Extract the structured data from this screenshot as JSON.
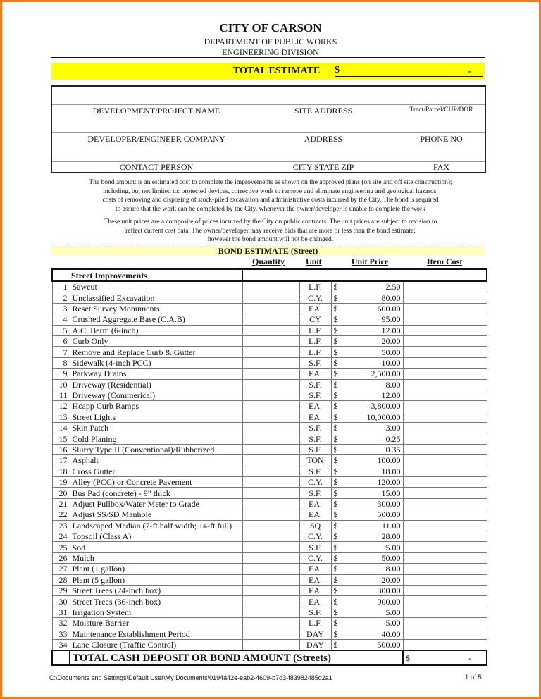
{
  "header": {
    "title": "CITY OF CARSON",
    "department": "DEPARTMENT OF PUBLIC WORKS",
    "division": "ENGINEERING DIVISION"
  },
  "total_estimate": {
    "label": "TOTAL ESTIMATE",
    "currency": "$",
    "value": "-",
    "highlight_color": "#ffff00"
  },
  "info_fields": {
    "project_name": "DEVELOPMENT/PROJECT NAME",
    "site_address": "SITE ADDRESS",
    "tract": "Tract/Parcel/CUP/DOR",
    "developer": "DEVELOPER/ENGINEER COMPANY",
    "address": "ADDRESS",
    "phone": "PHONE NO",
    "contact": "CONTACT PERSON",
    "city_state_zip": "CITY STATE ZIP",
    "fax": "FAX"
  },
  "disclaimer": {
    "p1": [
      "The bond amount is an estimated cost to complete the improvements as shown on the approved plans (on site and off site construction);",
      "including, but not limited to: protected devices, corrective work to remove and eliminate engineering and geological hazards,",
      "costs of removing and disposing of stock-piled excavation and administrative costs incurred by the City.  The bond is required",
      "to assure that the work can be completed by the City, whenever the owner/developer is unable to complete the work"
    ],
    "p2": [
      "These unit prices are a composite of prices incurred by the City on public contracts.  The unit prices are subject to revision to",
      "reflect current cost data. The owner/developer may receive bids that are more or less than the bond estimate;",
      "however the bond amount will not be changed."
    ]
  },
  "bond_estimate": {
    "title": "BOND ESTIMATE (Street)",
    "columns": {
      "quantity": "Quantity",
      "unit": "Unit",
      "unit_price": "Unit Price",
      "item_cost": "Item Cost"
    },
    "section": "Street Improvements",
    "currency": "$",
    "rows": [
      {
        "no": "1",
        "item": "Sawcut",
        "unit": "L.F.",
        "price": "2.50"
      },
      {
        "no": "2",
        "item": "Unclassified Excavation",
        "unit": "C.Y.",
        "price": "80.00"
      },
      {
        "no": "3",
        "item": "Reset Survey Monuments",
        "unit": "EA.",
        "price": "600.00"
      },
      {
        "no": "4",
        "item": "Crushed Aggregate Base (C.A.B)",
        "unit": "CY",
        "price": "95.00"
      },
      {
        "no": "5",
        "item": "A.C. Berm (6-inch)",
        "unit": "L.F.",
        "price": "12.00"
      },
      {
        "no": "6",
        "item": "Curb Only",
        "unit": "L.F.",
        "price": "20.00"
      },
      {
        "no": "7",
        "item": "Remove and Replace Curb & Gutter",
        "unit": "L.F.",
        "price": "50.00"
      },
      {
        "no": "8",
        "item": "Sidewalk (4-inch PCC)",
        "unit": "S.F.",
        "price": "10.00"
      },
      {
        "no": "9",
        "item": "Parkway Drains",
        "unit": "EA.",
        "price": "2,500.00"
      },
      {
        "no": "10",
        "item": "Driveway (Residential)",
        "unit": "S.F.",
        "price": "8.00"
      },
      {
        "no": "11",
        "item": "Driveway (Commerical)",
        "unit": "S.F.",
        "price": "12.00"
      },
      {
        "no": "12",
        "item": "Hcapp Curb Ramps",
        "unit": "EA.",
        "price": "3,800.00"
      },
      {
        "no": "13",
        "item": "Street Lights",
        "unit": "EA.",
        "price": "10,000.00"
      },
      {
        "no": "14",
        "item": "Skin Patch",
        "unit": "S.F.",
        "price": "3.00"
      },
      {
        "no": "15",
        "item": "Cold Planing",
        "unit": "S.F.",
        "price": "0.25"
      },
      {
        "no": "16",
        "item": "Slurry Type II (Conventional)/Rubberized",
        "unit": "S.F.",
        "price": "0.35"
      },
      {
        "no": "17",
        "item": "Asphalt",
        "unit": "TON",
        "price": "100.00"
      },
      {
        "no": "18",
        "item": "Cross Gutter",
        "unit": "S.F.",
        "price": "18.00"
      },
      {
        "no": "19",
        "item": "Alley (PCC) or Concrete Pavement",
        "unit": "C.Y.",
        "price": "120.00"
      },
      {
        "no": "20",
        "item": "Bus Pad (concrete) - 9\" thick",
        "unit": "S.F.",
        "price": "15.00"
      },
      {
        "no": "21",
        "item": "Adjust Pullbox/Water Meter to Grade",
        "unit": "EA.",
        "price": "300.00"
      },
      {
        "no": "22",
        "item": "Adjust SS/SD Manhole",
        "unit": "EA.",
        "price": "500.00"
      },
      {
        "no": "23",
        "item": "Landscaped Median (7-ft half width; 14-ft full)",
        "unit": "SQ",
        "price": "11.00"
      },
      {
        "no": "24",
        "item": "Topsoil (Class A)",
        "unit": "C.Y.",
        "price": "28.00"
      },
      {
        "no": "25",
        "item": "Sod",
        "unit": "S.F.",
        "price": "5.00"
      },
      {
        "no": "26",
        "item": "Mulch",
        "unit": "C.Y.",
        "price": "50.00"
      },
      {
        "no": "27",
        "item": "Plant (1 gallon)",
        "unit": "EA.",
        "price": "8.00"
      },
      {
        "no": "28",
        "item": "Plant (5 gallon)",
        "unit": "EA.",
        "price": "20.00"
      },
      {
        "no": "29",
        "item": "Street Trees (24-inch box)",
        "unit": "EA.",
        "price": "300.00"
      },
      {
        "no": "30",
        "item": "Street Trees (36-inch box)",
        "unit": "EA.",
        "price": "900.00"
      },
      {
        "no": "31",
        "item": "Irrigation System",
        "unit": "S.F.",
        "price": "5.00"
      },
      {
        "no": "32",
        "item": "Moisture Barrier",
        "unit": "L.F.",
        "price": "5.00"
      },
      {
        "no": "33",
        "item": "Maintenance Establishment Period",
        "unit": "DAY",
        "price": "40.00"
      },
      {
        "no": "34",
        "item": "Lane Closure (Traffic Control)",
        "unit": "DAY",
        "price": "500.00"
      }
    ],
    "total_label": "TOTAL CASH DEPOSIT OR BOND AMOUNT (Streets)",
    "total_currency": "$",
    "total_value": "-"
  },
  "footer": {
    "path": "C:\\Documents and Settings\\Default User\\My Documents\\0194a42e-eab2-4609-b7d3-f83982485d2a1",
    "page": "1 of 5"
  }
}
